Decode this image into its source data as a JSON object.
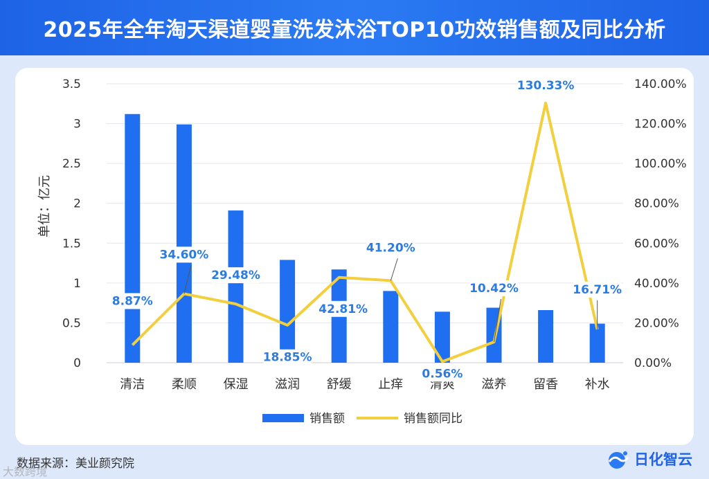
{
  "header": {
    "title": "2025年全年淘天渠道婴童洗发沐浴TOP10功效销售额及同比分析"
  },
  "chart_data": {
    "type": "bar+line",
    "categories": [
      "清洁",
      "柔顺",
      "保湿",
      "滋润",
      "舒缓",
      "止痒",
      "清爽",
      "滋养",
      "留香",
      "补水"
    ],
    "series": [
      {
        "name": "销售额",
        "type": "bar",
        "axis": "left",
        "color": "#1f6ff0",
        "values": [
          3.12,
          2.99,
          1.91,
          1.29,
          1.17,
          0.9,
          0.64,
          0.69,
          0.66,
          0.49
        ]
      },
      {
        "name": "销售额同比",
        "type": "line",
        "axis": "right",
        "color": "#f2cf3c",
        "values": [
          8.87,
          34.6,
          29.48,
          18.85,
          42.81,
          41.2,
          0.56,
          10.42,
          130.33,
          16.71
        ]
      }
    ],
    "data_labels": [
      "8.87%",
      "34.60%",
      "29.48%",
      "18.85%",
      "42.81%",
      "41.20%",
      "0.56%",
      "10.42%",
      "130.33%",
      "16.71%"
    ],
    "ylabel_left": "单位：亿元",
    "y_left_ticks": [
      "0",
      "0.5",
      "1",
      "1.5",
      "2",
      "2.5",
      "3",
      "3.5"
    ],
    "y_right_ticks": [
      "0.00%",
      "20.00%",
      "40.00%",
      "60.00%",
      "80.00%",
      "100.00%",
      "120.00%",
      "140.00%"
    ],
    "ylim_left": [
      0,
      3.5
    ],
    "ylim_right": [
      0,
      140
    ],
    "legend": [
      "销售额",
      "销售额同比"
    ],
    "legend_position": "bottom",
    "grid": true
  },
  "footer": {
    "source": "数据来源：美业颜究院",
    "brand": "日化智云",
    "watermark": "大数跨境"
  }
}
